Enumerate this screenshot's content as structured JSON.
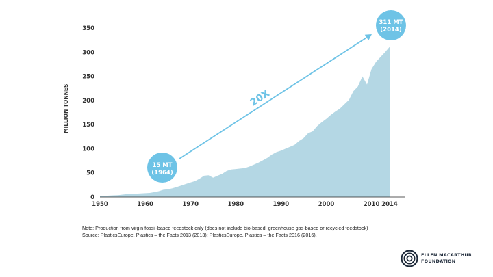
{
  "chart_data": {
    "type": "area",
    "title": "",
    "xlabel": "",
    "ylabel": "MILLION TONNES",
    "xlim": [
      1950,
      2014
    ],
    "ylim": [
      0,
      350
    ],
    "x_ticks": [
      "1950",
      "1960",
      "1970",
      "1980",
      "1990",
      "2000",
      "2010",
      "2014"
    ],
    "y_ticks": [
      "350",
      "300",
      "250",
      "200",
      "150",
      "100",
      "50",
      "0"
    ],
    "grid": false,
    "legend": "none",
    "colors": {
      "area": "#b4d7e4",
      "accent": "#6ec3e6",
      "text": "#333333"
    },
    "series": [
      {
        "x": [
          1950,
          1951,
          1952,
          1953,
          1954,
          1955,
          1956,
          1957,
          1958,
          1959,
          1960,
          1961,
          1962,
          1963,
          1964,
          1965,
          1966,
          1967,
          1968,
          1969,
          1970,
          1971,
          1972,
          1973,
          1974,
          1975,
          1976,
          1977,
          1978,
          1979,
          1980,
          1981,
          1982,
          1983,
          1984,
          1985,
          1986,
          1987,
          1988,
          1989,
          1990,
          1991,
          1992,
          1993,
          1994,
          1995,
          1996,
          1997,
          1998,
          1999,
          2000,
          2001,
          2002,
          2003,
          2004,
          2005,
          2006,
          2007,
          2008,
          2009,
          2010,
          2011,
          2012,
          2013,
          2014
        ],
        "values": [
          2,
          2.5,
          3,
          3.5,
          4,
          5,
          6,
          6.5,
          7,
          7.5,
          8,
          8.5,
          10,
          12,
          15,
          16,
          18,
          21,
          24,
          27,
          30,
          33,
          38,
          44,
          45,
          40,
          44,
          48,
          54,
          57,
          58,
          59,
          60,
          63,
          67,
          71,
          76,
          81,
          88,
          93,
          96,
          100,
          104,
          108,
          116,
          122,
          132,
          136,
          147,
          155,
          162,
          170,
          177,
          183,
          192,
          201,
          219,
          229,
          250,
          233,
          265,
          280,
          290,
          300,
          311
        ]
      }
    ],
    "annotations": [
      {
        "label_line1": "15 MT",
        "label_line2": "(1964)"
      },
      {
        "label_line1": "311 MT",
        "label_line2": "(2014)"
      },
      {
        "label": "20X"
      }
    ]
  },
  "footnote": {
    "note": "Note: Production from virgin fossil-based feedstock only (does not include bio-based, greenhouse gas-based or recycled feedstock) .",
    "source": "Source: PlasticsEurope, Plastics – the Facts 2013 (2013); PlasticsEurope, Plastics – the Facts 2016 (2016)."
  },
  "brand": {
    "line1": "ELLEN MACARTHUR",
    "line2": "FOUNDATION",
    "icon": "concentric-circles-logo-icon"
  }
}
